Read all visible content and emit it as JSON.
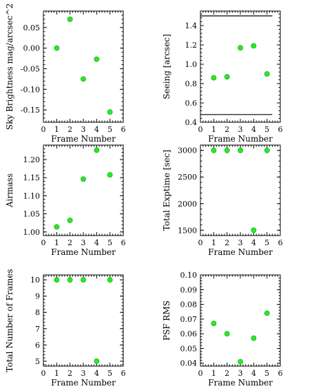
{
  "chart_data": [
    {
      "type": "scatter",
      "xlabel": "Frame Number",
      "ylabel": "Sky Brightness mag/arcsec^2",
      "xlim": [
        0,
        6
      ],
      "ylim": [
        -0.18,
        0.09
      ],
      "xticks": [
        "0",
        "1",
        "2",
        "3",
        "4",
        "5",
        "6"
      ],
      "yticks": [
        {
          "v": 0.05,
          "label": "0.05"
        },
        {
          "v": 0.0,
          "label": "0.00"
        },
        {
          "v": -0.05,
          "label": "-0.05"
        },
        {
          "v": -0.1,
          "label": "-0.10"
        },
        {
          "v": -0.15,
          "label": "-0.15"
        }
      ],
      "x": [
        1,
        2,
        3,
        4,
        5
      ],
      "y": [
        0.0,
        0.07,
        -0.075,
        -0.027,
        -0.155
      ],
      "color": "#22ee22"
    },
    {
      "type": "scatter",
      "xlabel": "Frame Number",
      "ylabel": "Seeing [arcsec]",
      "xlim": [
        0,
        6
      ],
      "ylim": [
        0.4,
        1.55
      ],
      "xticks": [
        "0",
        "1",
        "2",
        "3",
        "4",
        "5",
        "6"
      ],
      "yticks": [
        {
          "v": 0.4,
          "label": "0.4"
        },
        {
          "v": 0.6,
          "label": "0.6"
        },
        {
          "v": 0.8,
          "label": "0.8"
        },
        {
          "v": 1.0,
          "label": "1.0"
        },
        {
          "v": 1.2,
          "label": "1.2"
        },
        {
          "v": 1.4,
          "label": "1.4"
        }
      ],
      "x": [
        1,
        2,
        3,
        4,
        5
      ],
      "y": [
        0.86,
        0.87,
        1.17,
        1.19,
        0.9
      ],
      "hlines": [
        1.5,
        0.48
      ],
      "color": "#22ee22"
    },
    {
      "type": "scatter",
      "xlabel": "Frame Number",
      "ylabel": "Airmass",
      "xlim": [
        0,
        6
      ],
      "ylim": [
        0.99,
        1.24
      ],
      "xticks": [
        "0",
        "1",
        "2",
        "3",
        "4",
        "5",
        "6"
      ],
      "yticks": [
        {
          "v": 1.0,
          "label": "1.00"
        },
        {
          "v": 1.05,
          "label": "1.05"
        },
        {
          "v": 1.1,
          "label": "1.10"
        },
        {
          "v": 1.15,
          "label": "1.15"
        },
        {
          "v": 1.2,
          "label": "1.20"
        }
      ],
      "x": [
        1,
        2,
        3,
        4,
        5
      ],
      "y": [
        1.014,
        1.032,
        1.146,
        1.226,
        1.158
      ],
      "color": "#22ee22"
    },
    {
      "type": "scatter",
      "xlabel": "Frame Number",
      "ylabel": "Total Exptime [sec]",
      "xlim": [
        0,
        6
      ],
      "ylim": [
        1400,
        3100
      ],
      "xticks": [
        "0",
        "1",
        "2",
        "3",
        "4",
        "5",
        "6"
      ],
      "yticks": [
        {
          "v": 1500,
          "label": "1500"
        },
        {
          "v": 2000,
          "label": "2000"
        },
        {
          "v": 2500,
          "label": "2500"
        },
        {
          "v": 3000,
          "label": "3000"
        }
      ],
      "x": [
        1,
        2,
        3,
        4,
        5
      ],
      "y": [
        3000,
        3000,
        3000,
        1500,
        3000
      ],
      "color": "#22ee22"
    },
    {
      "type": "scatter",
      "xlabel": "Frame Number",
      "ylabel": "Total Number of Frames",
      "xlim": [
        0,
        6
      ],
      "ylim": [
        4.7,
        10.3
      ],
      "xticks": [
        "0",
        "1",
        "2",
        "3",
        "4",
        "5",
        "6"
      ],
      "yticks": [
        {
          "v": 5,
          "label": "5"
        },
        {
          "v": 6,
          "label": "6"
        },
        {
          "v": 7,
          "label": "7"
        },
        {
          "v": 8,
          "label": "8"
        },
        {
          "v": 9,
          "label": "9"
        },
        {
          "v": 10,
          "label": "10"
        }
      ],
      "x": [
        1,
        2,
        3,
        4,
        5
      ],
      "y": [
        10,
        10,
        10,
        5,
        10
      ],
      "color": "#22ee22"
    },
    {
      "type": "scatter",
      "xlabel": "Frame Number",
      "ylabel": "PSF RMS",
      "xlim": [
        0,
        6
      ],
      "ylim": [
        0.038,
        0.1
      ],
      "xticks": [
        "0",
        "1",
        "2",
        "3",
        "4",
        "5",
        "6"
      ],
      "yticks": [
        {
          "v": 0.04,
          "label": "0.04"
        },
        {
          "v": 0.05,
          "label": "0.05"
        },
        {
          "v": 0.06,
          "label": "0.06"
        },
        {
          "v": 0.07,
          "label": "0.07"
        },
        {
          "v": 0.08,
          "label": "0.08"
        },
        {
          "v": 0.09,
          "label": "0.09"
        },
        {
          "v": 0.1,
          "label": "0.10"
        }
      ],
      "x": [
        1,
        2,
        3,
        4,
        5
      ],
      "y": [
        0.067,
        0.06,
        0.041,
        0.057,
        0.074
      ],
      "color": "#22ee22"
    }
  ]
}
